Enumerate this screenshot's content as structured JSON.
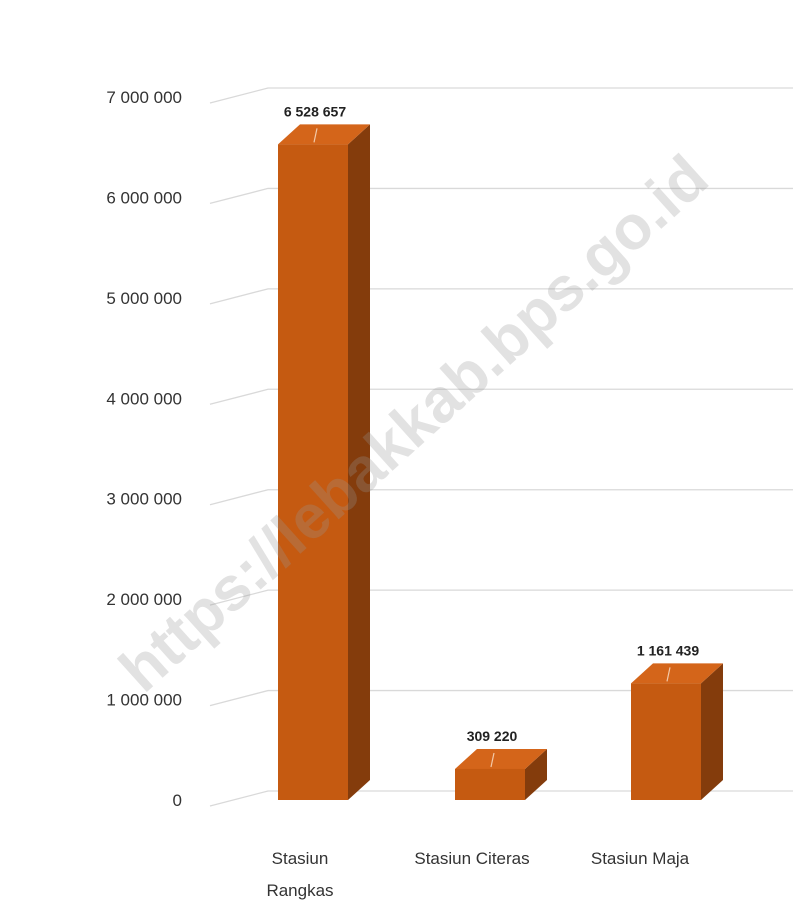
{
  "watermark": {
    "text": "https://lebakkab.bps.go.id"
  },
  "chart_data": {
    "type": "bar",
    "categories": [
      "Stasiun Rangkas",
      "Stasiun Citeras",
      "Stasiun Maja"
    ],
    "category_lines": [
      [
        "Stasiun",
        "Rangkas"
      ],
      [
        "Stasiun Citeras"
      ],
      [
        "Stasiun Maja"
      ]
    ],
    "values": [
      6528657,
      309220,
      1161439
    ],
    "value_labels": [
      "6 528 657",
      "309 220",
      "1 161 439"
    ],
    "ylim": [
      0,
      7000000
    ],
    "yticks": [
      0,
      1000000,
      2000000,
      3000000,
      4000000,
      5000000,
      6000000,
      7000000
    ],
    "ytick_labels": [
      "0",
      "1 000 000",
      "2 000 000",
      "3 000 000",
      "4 000 000",
      "5 000 000",
      "6 000 000",
      "7 000 000"
    ],
    "grid": true,
    "style": "3d-column",
    "colors": {
      "front": "#C55A11",
      "side": "#843C0C",
      "top": "#D4651A",
      "grid": "#D9D9D9"
    }
  }
}
